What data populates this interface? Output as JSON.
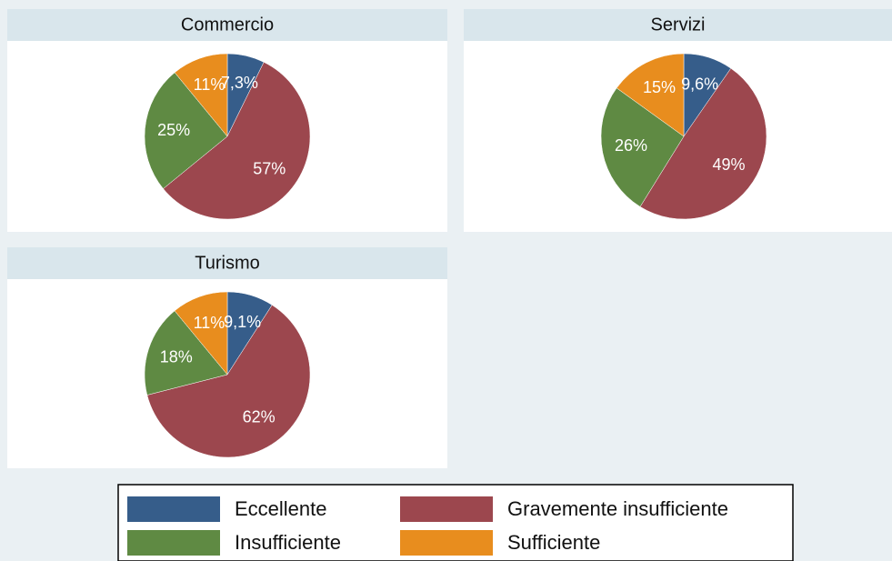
{
  "chart_data": [
    {
      "type": "pie",
      "title": "Commercio",
      "categories": [
        "Eccellente",
        "Gravemente insufficiente",
        "Insufficiente",
        "Sufficiente"
      ],
      "values": [
        7.3,
        57,
        25,
        11
      ],
      "value_labels": [
        "7,3%",
        "57%",
        "25%",
        "11%"
      ],
      "colors": [
        "#365d8a",
        "#9c474e",
        "#5f8a43",
        "#e88d1e"
      ]
    },
    {
      "type": "pie",
      "title": "Servizi",
      "categories": [
        "Eccellente",
        "Gravemente insufficiente",
        "Insufficiente",
        "Sufficiente"
      ],
      "values": [
        9.6,
        49,
        26,
        15
      ],
      "value_labels": [
        "9,6%",
        "49%",
        "26%",
        "15%"
      ],
      "colors": [
        "#365d8a",
        "#9c474e",
        "#5f8a43",
        "#e88d1e"
      ]
    },
    {
      "type": "pie",
      "title": "Turismo",
      "categories": [
        "Eccellente",
        "Gravemente insufficiente",
        "Insufficiente",
        "Sufficiente"
      ],
      "values": [
        9.1,
        62,
        18,
        11
      ],
      "value_labels": [
        "9,1%",
        "62%",
        "18%",
        "11%"
      ],
      "colors": [
        "#365d8a",
        "#9c474e",
        "#5f8a43",
        "#e88d1e"
      ]
    }
  ]
}
